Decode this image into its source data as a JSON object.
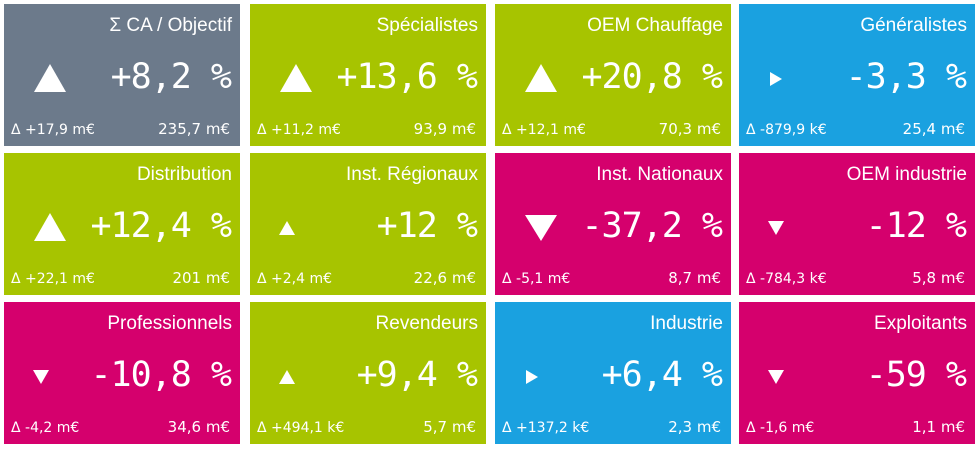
{
  "tiles": [
    {
      "label": "Σ CA / Objectif",
      "pct": "+8,2 %",
      "delta": "Δ +17,9 m€",
      "total": "235,7 m€",
      "color": "#6c7a8b",
      "indicator": "up-large-icon"
    },
    {
      "label": "Spécialistes",
      "pct": "+13,6 %",
      "delta": "Δ +11,2 m€",
      "total": "93,9 m€",
      "color": "#a7c400",
      "indicator": "up-large-icon"
    },
    {
      "label": "OEM Chauffage",
      "pct": "+20,8 %",
      "delta": "Δ +12,1 m€",
      "total": "70,3 m€",
      "color": "#a7c400",
      "indicator": "up-large-icon"
    },
    {
      "label": "Généralistes",
      "pct": "-3,3 %",
      "delta": "Δ -879,9 k€",
      "total": "25,4 m€",
      "color": "#1aa1e0",
      "indicator": "right-icon"
    },
    {
      "label": "Distribution",
      "pct": "+12,4 %",
      "delta": "Δ +22,1 m€",
      "total": "201 m€",
      "color": "#a7c400",
      "indicator": "up-large-icon"
    },
    {
      "label": "Inst. Régionaux",
      "pct": "+12 %",
      "delta": "Δ +2,4 m€",
      "total": "22,6 m€",
      "color": "#a7c400",
      "indicator": "up-small-icon"
    },
    {
      "label": "Inst. Nationaux",
      "pct": "-37,2 %",
      "delta": "Δ -5,1 m€",
      "total": "8,7 m€",
      "color": "#d5006d",
      "indicator": "down-large-icon"
    },
    {
      "label": "OEM industrie",
      "pct": "-12 %",
      "delta": "Δ -784,3 k€",
      "total": "5,8 m€",
      "color": "#d5006d",
      "indicator": "down-small-icon"
    },
    {
      "label": "Professionnels",
      "pct": "-10,8 %",
      "delta": "Δ -4,2 m€",
      "total": "34,6 m€",
      "color": "#d5006d",
      "indicator": "down-small-icon"
    },
    {
      "label": "Revendeurs",
      "pct": "+9,4 %",
      "delta": "Δ +494,1 k€",
      "total": "5,7 m€",
      "color": "#a7c400",
      "indicator": "up-small-icon"
    },
    {
      "label": "Industrie",
      "pct": "+6,4 %",
      "delta": "Δ +137,2 k€",
      "total": "2,3 m€",
      "color": "#1aa1e0",
      "indicator": "right-icon"
    },
    {
      "label": "Exploitants",
      "pct": "-59 %",
      "delta": "Δ -1,6 m€",
      "total": "1,1 m€",
      "color": "#d5006d",
      "indicator": "down-small-icon"
    }
  ]
}
